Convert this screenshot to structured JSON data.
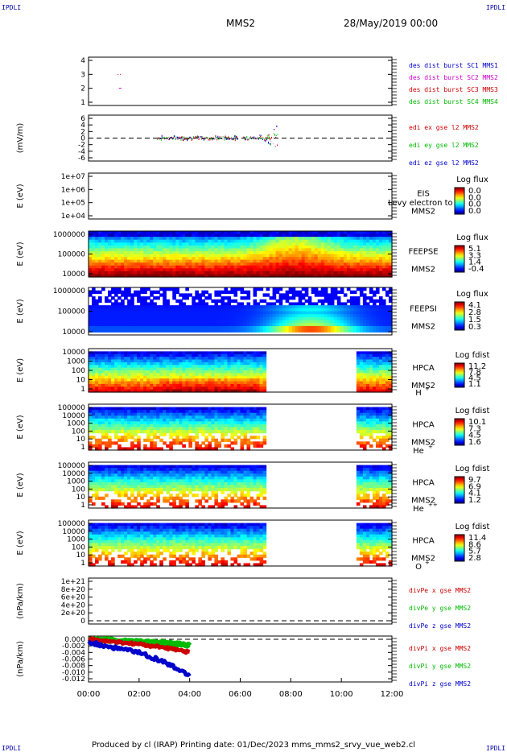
{
  "corners": {
    "tl": "IPDLI",
    "tr": "IPDLI",
    "bl": "IPDLI",
    "br": "IPDLI"
  },
  "header": {
    "mission": "MMS2",
    "date": "28/May/2019 00:00"
  },
  "footer": {
    "text": "Produced by cl (IRAP)   Printing date: 01/Dec/2023   mms_mms2_srvy_vue_web2.cl"
  },
  "chart_data": {
    "type": "heatmap",
    "x_axis": {
      "ticks": [
        "00:00",
        "02:00",
        "04:00",
        "06:00",
        "08:00",
        "10:00",
        "12:00"
      ],
      "range_hours": [
        0,
        12
      ]
    },
    "panels": [
      {
        "id": "burst",
        "type": "scatter",
        "ylabel": "",
        "yticks": [
          "4",
          "3",
          "2",
          "1"
        ],
        "legend": [
          {
            "text": "des dist burst SC1 MMS1",
            "color": "#0000cc"
          },
          {
            "text": "des dist burst SC2 MMS2",
            "color": "#cc00cc"
          },
          {
            "text": "des dist burst SC3 MMS3",
            "color": "#cc0000"
          },
          {
            "text": "des dist burst SC4 MMS4",
            "color": "#00bb00"
          }
        ],
        "marks": [
          {
            "sc": 3,
            "x_hours": [
              1.15,
              1.32
            ]
          },
          {
            "sc": 2,
            "x_hours": [
              1.2,
              1.3
            ]
          }
        ]
      },
      {
        "id": "edi",
        "type": "line",
        "ylabel": "(mV/m)",
        "yticks": [
          "6",
          "4",
          "2",
          "0",
          "-2",
          "-4",
          "-6"
        ],
        "legend": [
          {
            "text": "edi ex gse l2 MMS2",
            "color": "#cc0000"
          },
          {
            "text": "edi ey gse l2 MMS2",
            "color": "#00bb00"
          },
          {
            "text": "edi ez gse l2 MMS2",
            "color": "#0000cc"
          }
        ],
        "range_hours": [
          2.7,
          7.5
        ],
        "ylim": [
          -7,
          7
        ]
      },
      {
        "id": "eis",
        "type": "heatmap",
        "ylabel": "E (eV)",
        "yticks": [
          "1e+07",
          "1e+06",
          "1e+05",
          "1e+04"
        ],
        "right_labels": [
          "EIS",
          "MMS2"
        ],
        "overlap_text": "Levy electron to",
        "colorbar": {
          "title": "Log flux",
          "ticks": [
            "0.0",
            "0.0",
            "0.0",
            "0.0"
          ]
        }
      },
      {
        "id": "feepse",
        "type": "heatmap",
        "ylabel": "E (eV)",
        "yticks": [
          "1000000",
          "100000",
          "10000"
        ],
        "right_labels": [
          "FEEPSE",
          "MMS2"
        ],
        "colorbar": {
          "title": "Log flux",
          "ticks": [
            "5.1",
            "3.3",
            "1.4",
            "-0.4"
          ]
        }
      },
      {
        "id": "feepsi",
        "type": "heatmap",
        "ylabel": "E (eV)",
        "yticks": [
          "1000000",
          "100000",
          "10000"
        ],
        "right_labels": [
          "FEEPSI",
          "MMS2"
        ],
        "colorbar": {
          "title": "Log flux",
          "ticks": [
            "4.1",
            "2.8",
            "1.5",
            "0.3"
          ]
        }
      },
      {
        "id": "hpca_h",
        "type": "heatmap",
        "ylabel": "E (eV)",
        "yticks": [
          "10000",
          "1000",
          "100",
          "10",
          "1"
        ],
        "right_labels": [
          "HPCA",
          "MMS2"
        ],
        "species": "H",
        "charge": "+",
        "gap_hours": [
          7.0,
          10.55
        ],
        "colorbar": {
          "title": "Log fdist",
          "ticks": [
            "11.2",
            "7.8",
            "4.5",
            "1.1"
          ]
        }
      },
      {
        "id": "hpca_he",
        "type": "heatmap",
        "ylabel": "E (eV)",
        "yticks": [
          "100000",
          "10000",
          "1000",
          "100",
          "10",
          "1"
        ],
        "right_labels": [
          "HPCA",
          "MMS2"
        ],
        "species": "He",
        "charge": "+",
        "gap_hours": [
          7.0,
          10.55
        ],
        "colorbar": {
          "title": "Log fdist",
          "ticks": [
            "10.1",
            "7.3",
            "4.5",
            "1.6"
          ]
        }
      },
      {
        "id": "hpca_he2",
        "type": "heatmap",
        "ylabel": "E (eV)",
        "yticks": [
          "100000",
          "10000",
          "1000",
          "100",
          "10",
          "1"
        ],
        "right_labels": [
          "HPCA",
          "MMS2"
        ],
        "species": "He",
        "charge": "++",
        "gap_hours": [
          7.0,
          10.55
        ],
        "colorbar": {
          "title": "Log fdist",
          "ticks": [
            "9.7",
            "6.9",
            "4.1",
            "1.2"
          ]
        }
      },
      {
        "id": "hpca_o",
        "type": "heatmap",
        "ylabel": "E (eV)",
        "yticks": [
          "100000",
          "10000",
          "1000",
          "100",
          "10",
          "1"
        ],
        "right_labels": [
          "HPCA",
          "MMS2"
        ],
        "species": "O",
        "charge": "+",
        "gap_hours": [
          7.0,
          10.55
        ],
        "colorbar": {
          "title": "Log fdist",
          "ticks": [
            "11.4",
            "8.6",
            "5.7",
            "2.8"
          ]
        }
      },
      {
        "id": "divpe",
        "type": "line",
        "ylabel": "(nPa/km)",
        "yticks": [
          "1e+21",
          "8e+20",
          "6e+20",
          "4e+20",
          "2e+20",
          "0"
        ],
        "legend": [
          {
            "text": "divPe x gse MMS2",
            "color": "#cc0000"
          },
          {
            "text": "divPe y gse MMS2",
            "color": "#00bb00"
          },
          {
            "text": "divPe z gse MMS2",
            "color": "#0000cc"
          }
        ]
      },
      {
        "id": "divpi",
        "type": "line",
        "ylabel": "(nPa/km)",
        "yticks": [
          "0.000",
          "-0.002",
          "-0.004",
          "-0.006",
          "-0.008",
          "-0.010",
          "-0.012"
        ],
        "ylim": [
          -0.0125,
          0.0005
        ],
        "range_hours": [
          0,
          4
        ],
        "legend": [
          {
            "text": "divPi x gse MMS2",
            "color": "#cc0000"
          },
          {
            "text": "divPi y gse MMS2",
            "color": "#00bb00"
          },
          {
            "text": "divPi z gse MMS2",
            "color": "#0000cc"
          }
        ],
        "series": [
          {
            "name": "divPi x gse MMS2",
            "x_hours": [
              0,
              1,
              2,
              3,
              4
            ],
            "values": [
              0.0,
              -0.0008,
              -0.0015,
              -0.0025,
              -0.004
            ]
          },
          {
            "name": "divPi y gse MMS2",
            "x_hours": [
              0,
              1,
              2,
              3,
              4
            ],
            "values": [
              0.0,
              -0.0004,
              -0.0008,
              -0.0012,
              -0.0018
            ]
          },
          {
            "name": "divPi z gse MMS2",
            "x_hours": [
              0,
              1,
              2,
              3,
              4
            ],
            "values": [
              -0.001,
              -0.0025,
              -0.004,
              -0.007,
              -0.011
            ]
          }
        ]
      }
    ]
  }
}
